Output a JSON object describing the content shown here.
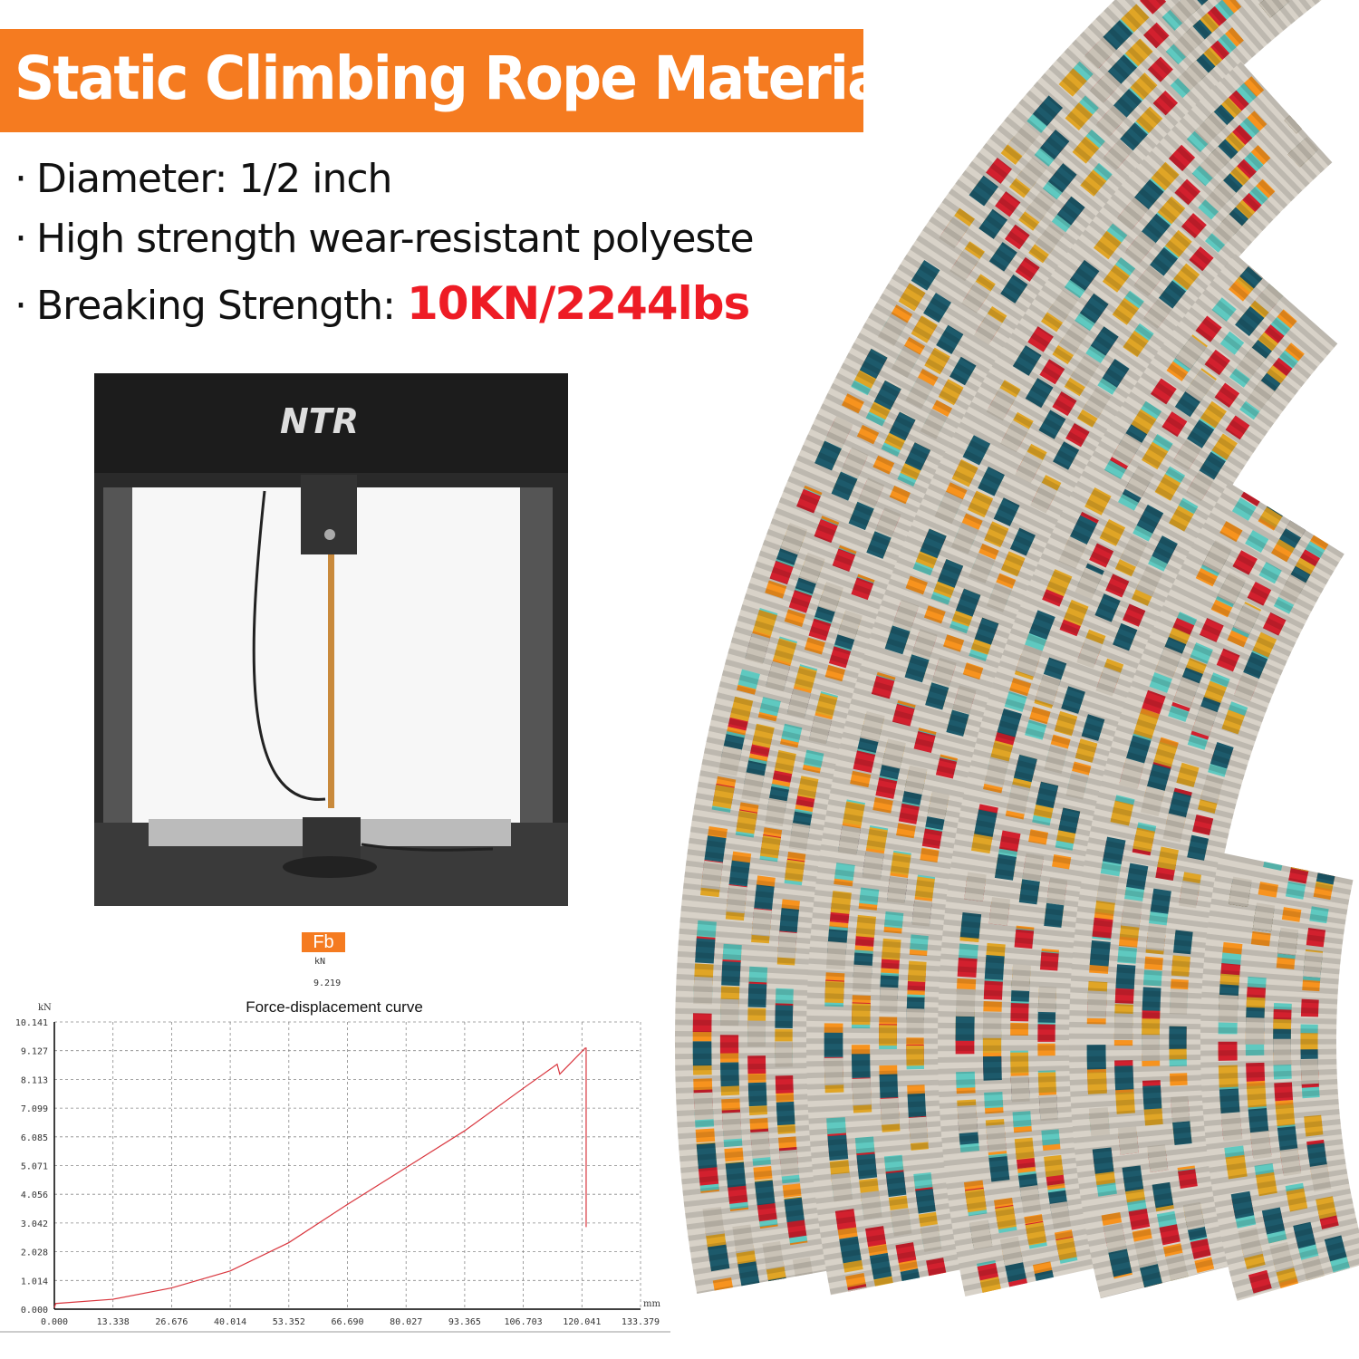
{
  "banner": {
    "title": "Static Climbing Rope Material",
    "color": "#f57b20"
  },
  "bullets": [
    {
      "text": "Diameter: 1/2 inch"
    },
    {
      "text": "High strength wear-resistant polyeste"
    },
    {
      "text": "Breaking Strength: ",
      "highlight": "10KN/2244lbs",
      "highlight_color": "#ee1c25"
    }
  ],
  "machine": {
    "brand": "NTR"
  },
  "result": {
    "label": "Fb",
    "unit": "kN",
    "value": "9.219"
  },
  "chart_data": {
    "type": "line",
    "title": "Force-displacement curve",
    "ylabel": "kN",
    "xlabel": "mm",
    "xlim": [
      0,
      133.379
    ],
    "ylim": [
      0,
      10.141
    ],
    "grid": true,
    "x_ticks": [
      "0.000",
      "13.338",
      "26.676",
      "40.014",
      "53.352",
      "66.690",
      "80.027",
      "93.365",
      "106.703",
      "120.041",
      "133.379"
    ],
    "y_ticks": [
      "0.000",
      "1.014",
      "2.028",
      "3.042",
      "4.056",
      "5.071",
      "6.085",
      "7.099",
      "8.113",
      "9.127",
      "10.141"
    ],
    "color": "#d9363e",
    "series": [
      {
        "x": [
          0,
          0.3,
          13.338,
          26.676,
          40.014,
          53.352,
          66.69,
          80.027,
          93.365,
          106.703,
          114.4,
          115.0,
          120.8,
          121.0,
          121.0
        ],
        "y": [
          0.05,
          0.2,
          0.35,
          0.75,
          1.35,
          2.35,
          3.7,
          5.0,
          6.3,
          7.8,
          8.65,
          8.3,
          9.22,
          9.22,
          2.9
        ]
      }
    ]
  }
}
